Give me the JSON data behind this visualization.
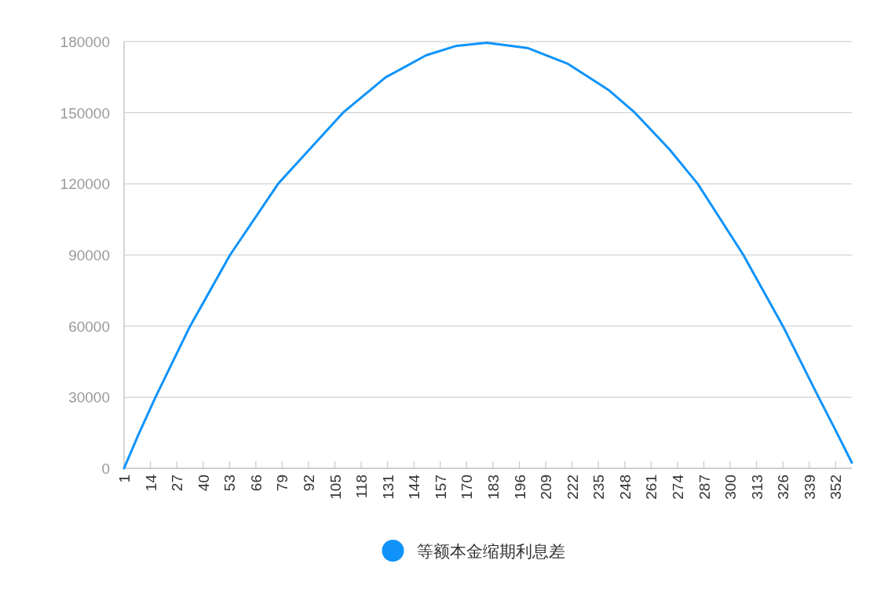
{
  "chart_data": {
    "type": "line",
    "x": [
      1,
      8,
      16.5,
      33.6,
      53.3,
      77,
      109,
      130,
      150,
      165,
      180,
      200,
      220,
      240,
      253,
      270,
      284,
      306.5,
      326,
      343.6,
      352,
      360
    ],
    "series": [
      {
        "name": "等额本金缩期利息差",
        "color": "#0f93fa",
        "values": [
          0,
          14000,
          30000,
          60000,
          90000,
          120000,
          150000,
          164900,
          174200,
          178200,
          179500,
          177300,
          170600,
          159600,
          150000,
          134600,
          120000,
          90000,
          60000,
          30000,
          16000,
          2400
        ]
      }
    ],
    "xlim": [
      1,
      360
    ],
    "xticks": [
      1,
      14,
      27,
      40,
      53,
      66,
      79,
      92,
      105,
      118,
      131,
      144,
      157,
      170,
      183,
      196,
      209,
      222,
      235,
      248,
      261,
      274,
      287,
      300,
      313,
      326,
      339,
      352
    ],
    "ylim": [
      0,
      180000
    ],
    "yticks": [
      0,
      30000,
      60000,
      90000,
      120000,
      150000,
      180000
    ],
    "grid": "y",
    "legend": "bottom",
    "marker": "none",
    "line_style": "solid"
  }
}
